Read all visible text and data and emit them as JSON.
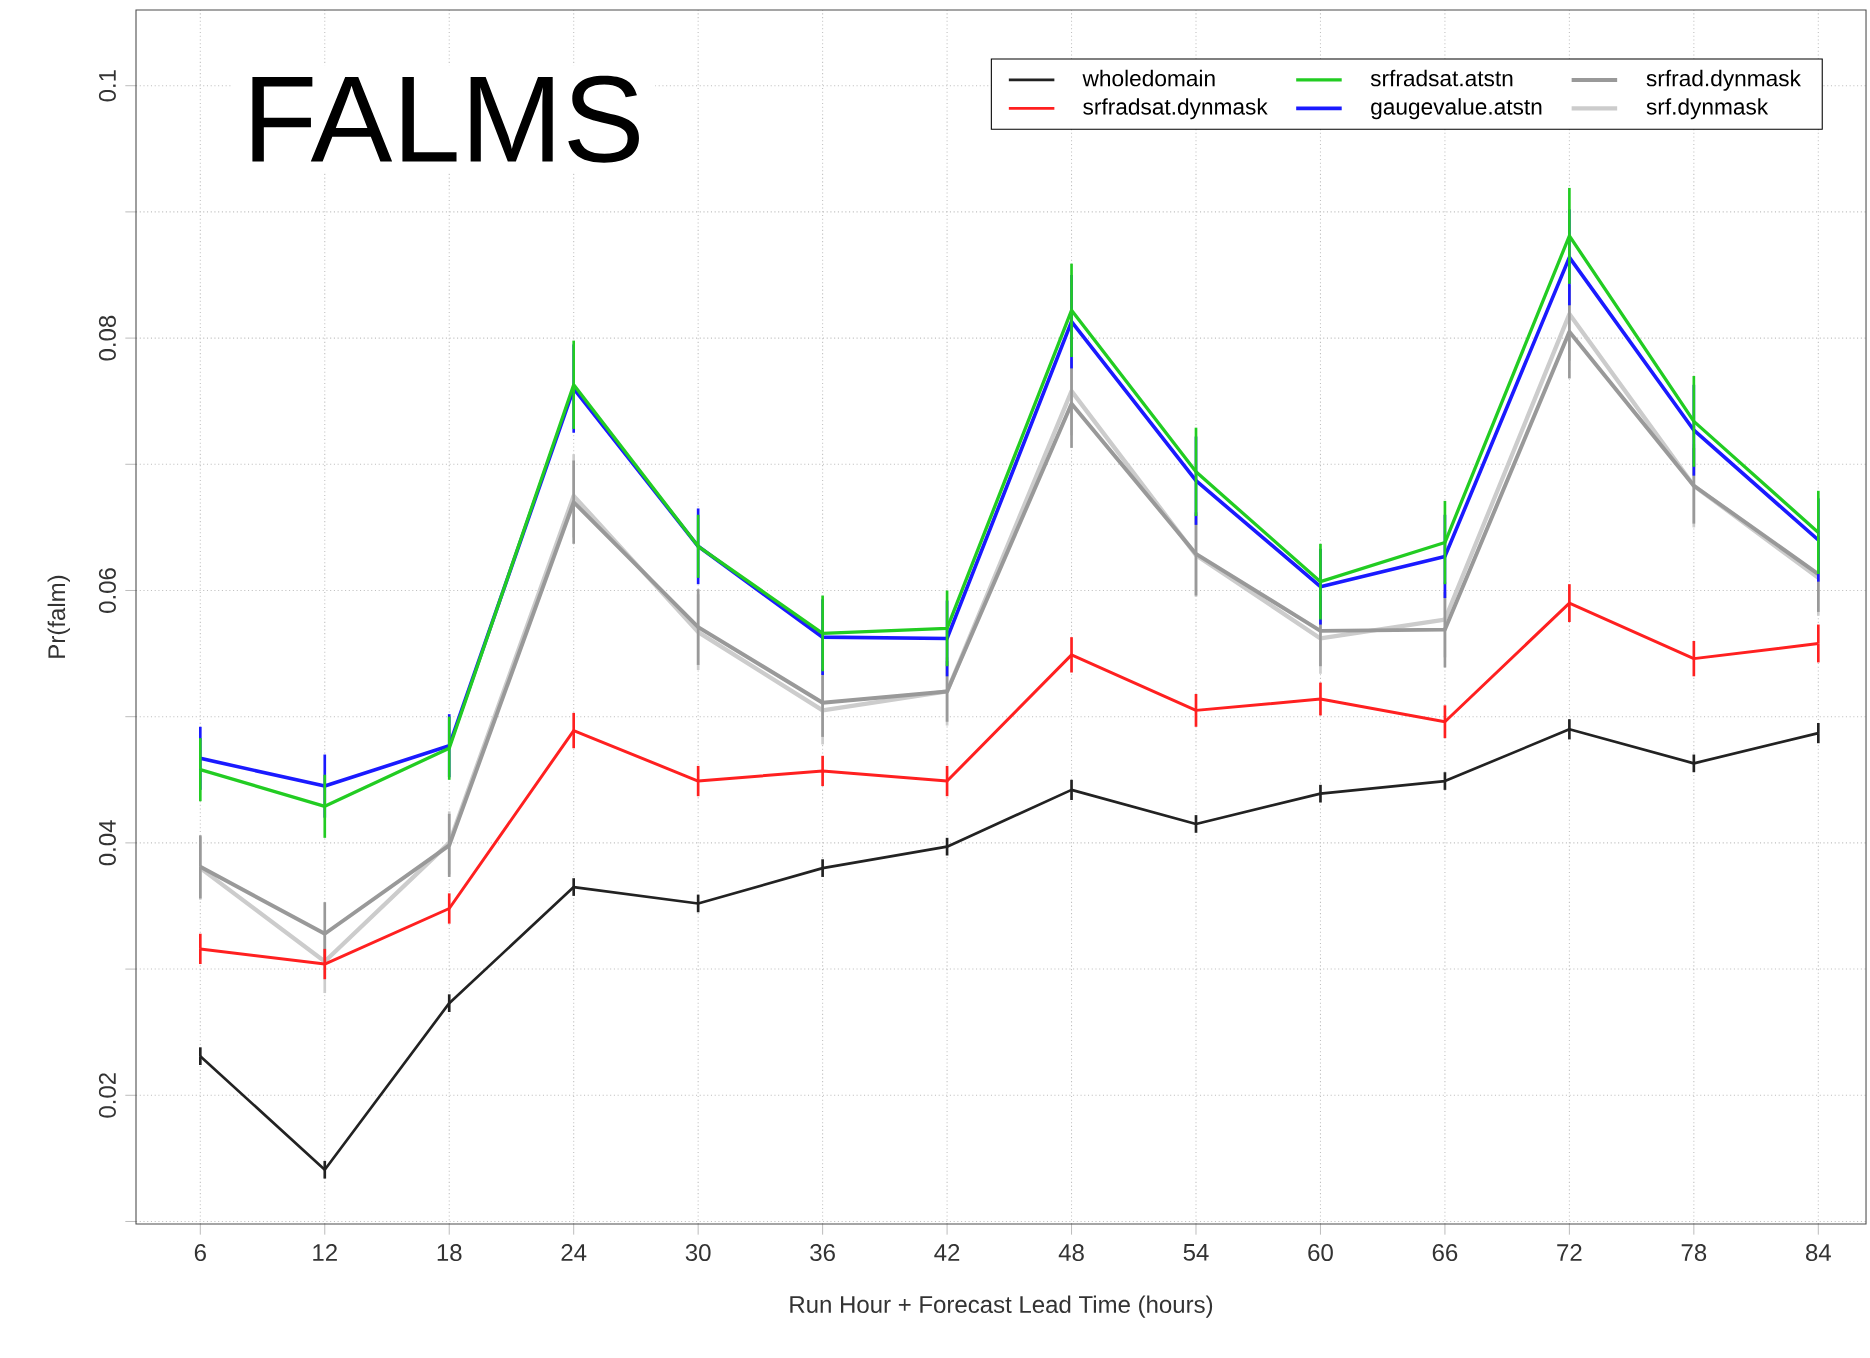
{
  "chart_data": {
    "type": "line",
    "title": "FALMS",
    "xlabel": "Run Hour + Forecast Lead Time (hours)",
    "ylabel": "Pr(falm)",
    "x": [
      6,
      12,
      18,
      24,
      30,
      36,
      42,
      48,
      54,
      60,
      66,
      72,
      78,
      84
    ],
    "series": [
      {
        "name": "wholedomain",
        "color": "#222222",
        "values": [
          0.0231,
          0.0141,
          0.0273,
          0.0365,
          0.0352,
          0.038,
          0.0397,
          0.0442,
          0.0415,
          0.0439,
          0.0449,
          0.049,
          0.0463,
          0.0487
        ],
        "errors": [
          0.0007,
          0.0007,
          0.0007,
          0.0007,
          0.0007,
          0.0007,
          0.0007,
          0.0008,
          0.0007,
          0.0007,
          0.0007,
          0.0008,
          0.0007,
          0.0008
        ]
      },
      {
        "name": "srfradsat.dynmask",
        "color": "#ff2020",
        "values": [
          0.0316,
          0.0304,
          0.0348,
          0.0489,
          0.0449,
          0.0457,
          0.0449,
          0.0549,
          0.0505,
          0.0514,
          0.0496,
          0.059,
          0.0546,
          0.0558
        ],
        "errors": [
          0.0012,
          0.0012,
          0.0012,
          0.0014,
          0.0012,
          0.0012,
          0.0012,
          0.0014,
          0.0013,
          0.0013,
          0.0013,
          0.0015,
          0.0014,
          0.0015
        ]
      },
      {
        "name": "srfradsat.atstn",
        "color": "#22cc22",
        "values": [
          0.0458,
          0.0429,
          0.0475,
          0.0763,
          0.0635,
          0.0566,
          0.057,
          0.0822,
          0.0694,
          0.0607,
          0.0638,
          0.0881,
          0.0734,
          0.0646
        ],
        "errors": [
          0.0025,
          0.0025,
          0.0025,
          0.0035,
          0.0025,
          0.003,
          0.003,
          0.0037,
          0.0035,
          0.003,
          0.0033,
          0.0038,
          0.0036,
          0.0033
        ]
      },
      {
        "name": "gaugevalue.atstn",
        "color": "#1a1aff",
        "values": [
          0.0467,
          0.0445,
          0.0477,
          0.076,
          0.0635,
          0.0563,
          0.0562,
          0.0813,
          0.0687,
          0.0603,
          0.0627,
          0.0864,
          0.0727,
          0.064
        ],
        "errors": [
          0.0025,
          0.0025,
          0.0025,
          0.0035,
          0.003,
          0.003,
          0.003,
          0.0037,
          0.0035,
          0.003,
          0.0033,
          0.0038,
          0.0036,
          0.0033
        ]
      },
      {
        "name": "srfrad.dynmask",
        "color": "#999999",
        "values": [
          0.0381,
          0.0328,
          0.0398,
          0.067,
          0.0571,
          0.0511,
          0.052,
          0.0748,
          0.0629,
          0.0568,
          0.0569,
          0.0805,
          0.0683,
          0.0613
        ],
        "errors": [
          0.0025,
          0.0025,
          0.0025,
          0.0033,
          0.003,
          0.0027,
          0.0024,
          0.0035,
          0.0033,
          0.0028,
          0.003,
          0.0037,
          0.003,
          0.003
        ]
      },
      {
        "name": "srf.dynmask",
        "color": "#cccccc",
        "values": [
          0.038,
          0.0306,
          0.04,
          0.0675,
          0.0567,
          0.0505,
          0.052,
          0.0758,
          0.0628,
          0.0562,
          0.0577,
          0.0819,
          0.0683,
          0.061
        ],
        "errors": [
          0.0025,
          0.0025,
          0.0025,
          0.0033,
          0.003,
          0.0027,
          0.0027,
          0.0035,
          0.0033,
          0.0028,
          0.003,
          0.0037,
          0.0033,
          0.003
        ]
      }
    ],
    "xlim": [
      2.9,
      86.3
    ],
    "ylim": [
      0.0098,
      0.106
    ],
    "xticks": [
      6,
      12,
      18,
      24,
      30,
      36,
      42,
      48,
      54,
      60,
      66,
      72,
      78,
      84
    ],
    "yticks": [
      {
        "value": 0.01,
        "label": null
      },
      0.02,
      {
        "value": 0.03,
        "label": null
      },
      0.04,
      {
        "value": 0.05,
        "label": null
      },
      0.06,
      {
        "value": 0.07,
        "label": null
      },
      0.08,
      {
        "value": 0.09,
        "label": null
      },
      0.1
    ],
    "grid": true,
    "legend": "top right",
    "marker": "none",
    "line_style": "solid"
  }
}
